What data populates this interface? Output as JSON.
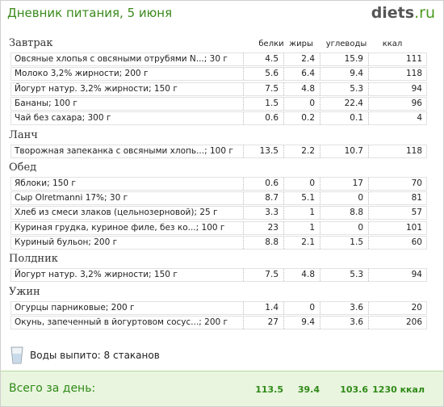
{
  "header": {
    "title": "Дневник питания, 5 июня",
    "logo": {
      "name": "diets",
      "domain": ".ru"
    }
  },
  "table": {
    "columns": [
      "белки",
      "жиры",
      "углеводы",
      "ккал"
    ],
    "sections": [
      {
        "name": "Завтрак",
        "rows": [
          {
            "food": "Овсяные хлопья с овсяными отрубями N...; 30 г",
            "values": [
              "4.5",
              "2.4",
              "15.9",
              "111"
            ]
          },
          {
            "food": "Молоко 3,2% жирности; 200 г",
            "values": [
              "5.6",
              "6.4",
              "9.4",
              "118"
            ]
          },
          {
            "food": "Йогурт натур. 3,2% жирности; 150 г",
            "values": [
              "7.5",
              "4.8",
              "5.3",
              "94"
            ]
          },
          {
            "food": "Бананы; 100 г",
            "values": [
              "1.5",
              "0",
              "22.4",
              "96"
            ]
          },
          {
            "food": "Чай без сахара; 300 г",
            "values": [
              "0.6",
              "0.2",
              "0.1",
              "4"
            ]
          }
        ]
      },
      {
        "name": "Ланч",
        "rows": [
          {
            "food": "Творожная запеканка с овсяными хлопь...; 100 г",
            "values": [
              "13.5",
              "2.2",
              "10.7",
              "118"
            ]
          }
        ]
      },
      {
        "name": "Обед",
        "rows": [
          {
            "food": "Яблоки; 150 г",
            "values": [
              "0.6",
              "0",
              "17",
              "70"
            ]
          },
          {
            "food": "Сыр Olretmanni 17%; 30 г",
            "values": [
              "8.7",
              "5.1",
              "0",
              "81"
            ]
          },
          {
            "food": "Хлеб из смеси злаков (цельнозерновой); 25 г",
            "values": [
              "3.3",
              "1",
              "8.8",
              "57"
            ]
          },
          {
            "food": "Куриная грудка, куриное филе, без ко...; 100 г",
            "values": [
              "23",
              "1",
              "0",
              "101"
            ]
          },
          {
            "food": "Куриный бульон; 200 г",
            "values": [
              "8.8",
              "2.1",
              "1.5",
              "60"
            ]
          }
        ]
      },
      {
        "name": "Полдник",
        "rows": [
          {
            "food": "Йогурт натур. 3,2% жирности; 150 г",
            "values": [
              "7.5",
              "4.8",
              "5.3",
              "94"
            ]
          }
        ]
      },
      {
        "name": "Ужин",
        "rows": [
          {
            "food": "Огурцы парниковые; 200 г",
            "values": [
              "1.4",
              "0",
              "3.6",
              "20"
            ]
          },
          {
            "food": "Окунь, запеченный в йогуртовом сосус...; 200 г",
            "values": [
              "27",
              "9.4",
              "3.6",
              "206"
            ]
          }
        ]
      }
    ]
  },
  "water": "Воды выпито: 8 стаканов",
  "totals": {
    "label": "Всего за день:",
    "values": [
      "113.5",
      "39.4",
      "103.6",
      "1230 ккал"
    ]
  }
}
